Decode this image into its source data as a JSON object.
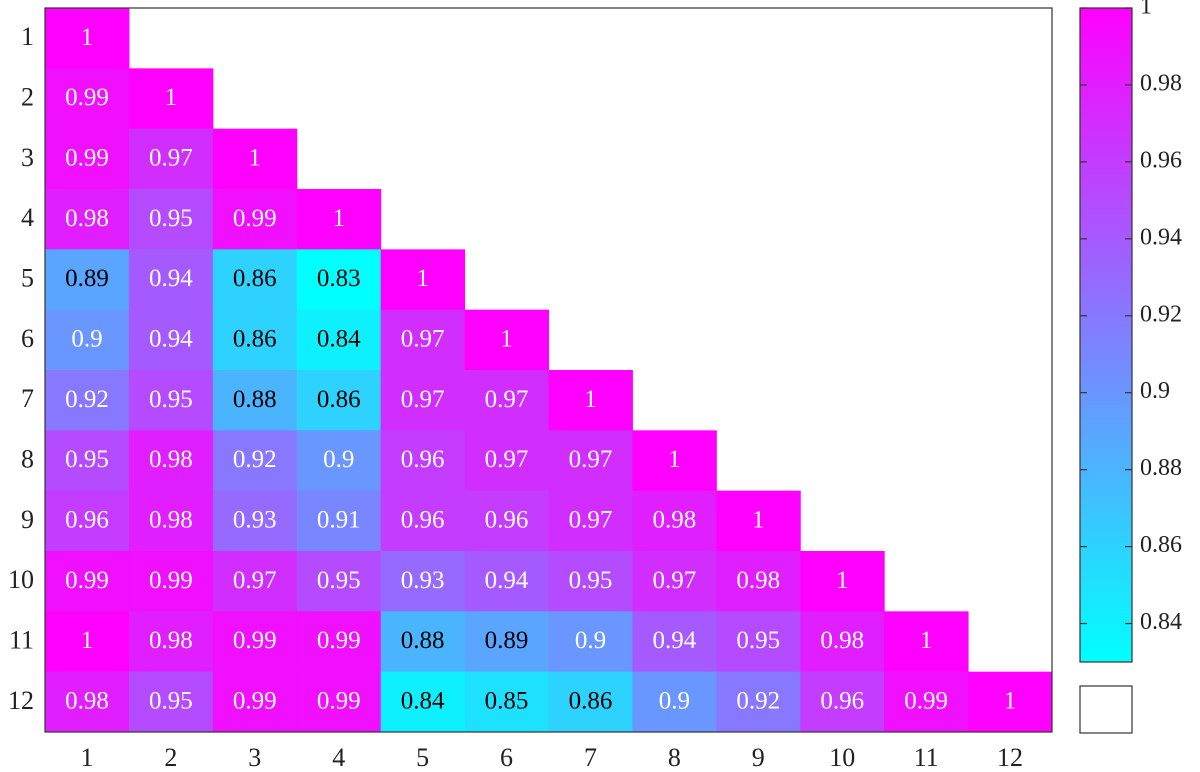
{
  "chart_data": {
    "type": "heatmap",
    "categories": [
      "1",
      "2",
      "3",
      "4",
      "5",
      "6",
      "7",
      "8",
      "9",
      "10",
      "11",
      "12"
    ],
    "y_categories": [
      "1",
      "2",
      "3",
      "4",
      "5",
      "6",
      "7",
      "8",
      "9",
      "10",
      "11",
      "12"
    ],
    "values": [
      [
        1,
        null,
        null,
        null,
        null,
        null,
        null,
        null,
        null,
        null,
        null,
        null
      ],
      [
        0.99,
        1,
        null,
        null,
        null,
        null,
        null,
        null,
        null,
        null,
        null,
        null
      ],
      [
        0.99,
        0.97,
        1,
        null,
        null,
        null,
        null,
        null,
        null,
        null,
        null,
        null
      ],
      [
        0.98,
        0.95,
        0.99,
        1,
        null,
        null,
        null,
        null,
        null,
        null,
        null,
        null
      ],
      [
        0.89,
        0.94,
        0.86,
        0.83,
        1,
        null,
        null,
        null,
        null,
        null,
        null,
        null
      ],
      [
        0.9,
        0.94,
        0.86,
        0.84,
        0.97,
        1,
        null,
        null,
        null,
        null,
        null,
        null
      ],
      [
        0.92,
        0.95,
        0.88,
        0.86,
        0.97,
        0.97,
        1,
        null,
        null,
        null,
        null,
        null
      ],
      [
        0.95,
        0.98,
        0.92,
        0.9,
        0.96,
        0.97,
        0.97,
        1,
        null,
        null,
        null,
        null
      ],
      [
        0.96,
        0.98,
        0.93,
        0.91,
        0.96,
        0.96,
        0.97,
        0.98,
        1,
        null,
        null,
        null
      ],
      [
        0.99,
        0.99,
        0.97,
        0.95,
        0.93,
        0.94,
        0.95,
        0.97,
        0.98,
        1,
        null,
        null
      ],
      [
        1,
        0.98,
        0.99,
        0.99,
        0.88,
        0.89,
        0.9,
        0.94,
        0.95,
        0.98,
        1,
        null
      ],
      [
        0.98,
        0.95,
        0.99,
        0.99,
        0.84,
        0.85,
        0.86,
        0.9,
        0.92,
        0.96,
        0.99,
        1
      ]
    ],
    "colormap": "cool",
    "clim": [
      0.83,
      1
    ],
    "colorbar_ticks": [
      0.84,
      0.86,
      0.88,
      0.9,
      0.92,
      0.94,
      0.96,
      0.98,
      1
    ]
  }
}
